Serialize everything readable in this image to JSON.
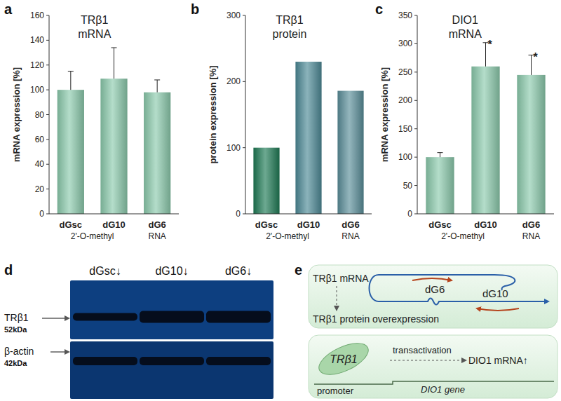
{
  "chart_data": [
    {
      "panel": "a",
      "type": "bar",
      "title": "TRβ1 mRNA",
      "y_label": "mRNA expression [%]",
      "categories": [
        "dGsc",
        "dG10",
        "dG6"
      ],
      "group_labels": [
        "2'-O-methyl",
        "RNA"
      ],
      "values": [
        100,
        109,
        98
      ],
      "errors": [
        15,
        25,
        10
      ],
      "color": "#8ccbad",
      "ylim": [
        0,
        160
      ],
      "yticks": [
        0,
        20,
        40,
        60,
        80,
        100,
        120,
        140,
        160
      ],
      "grid": false
    },
    {
      "panel": "b",
      "type": "bar",
      "title": "TRβ1 protein",
      "y_label": "protein  expression  [%]",
      "categories": [
        "dGsc",
        "dG10",
        "dG6"
      ],
      "group_labels": [
        "2'-O-methyl",
        "RNA"
      ],
      "values": [
        100,
        230,
        186
      ],
      "colors": [
        "#1f7a55",
        "#4d8a96",
        "#5a8e9a"
      ],
      "ylim": [
        0,
        300
      ],
      "yticks": [
        0,
        100,
        200,
        300
      ],
      "grid": false
    },
    {
      "panel": "c",
      "type": "bar",
      "title": "DIO1 mRNA",
      "y_label": "mRNA expression [%]",
      "categories": [
        "dGsc",
        "dG10",
        "dG6"
      ],
      "group_labels": [
        "2'-O-methyl",
        "RNA"
      ],
      "values": [
        100,
        260,
        245
      ],
      "errors": [
        8,
        42,
        35
      ],
      "significance": [
        null,
        "*",
        "*"
      ],
      "color": "#8ccbad",
      "ylim": [
        0,
        350
      ],
      "yticks": [
        0,
        50,
        100,
        150,
        200,
        250,
        300,
        350
      ],
      "grid": false
    }
  ],
  "blot": {
    "panel": "d",
    "lanes": [
      "dGsc↓",
      "dG10↓",
      "dG6↓"
    ],
    "rows": [
      {
        "label": "TRβ1",
        "size": "52kDa"
      },
      {
        "label": "β-actin",
        "size": "42kDa"
      }
    ]
  },
  "diagram": {
    "panel": "e",
    "mrna_label": "TRβ1 mRNA",
    "probes": [
      "dG6",
      "dG10"
    ],
    "outcome": "TRβ1 protein overexpression",
    "protein": "TRβ1",
    "action": "transactivation",
    "target": "DIO1 mRNA↑",
    "promoter": "promoter",
    "gene": "DIO1 gene"
  }
}
